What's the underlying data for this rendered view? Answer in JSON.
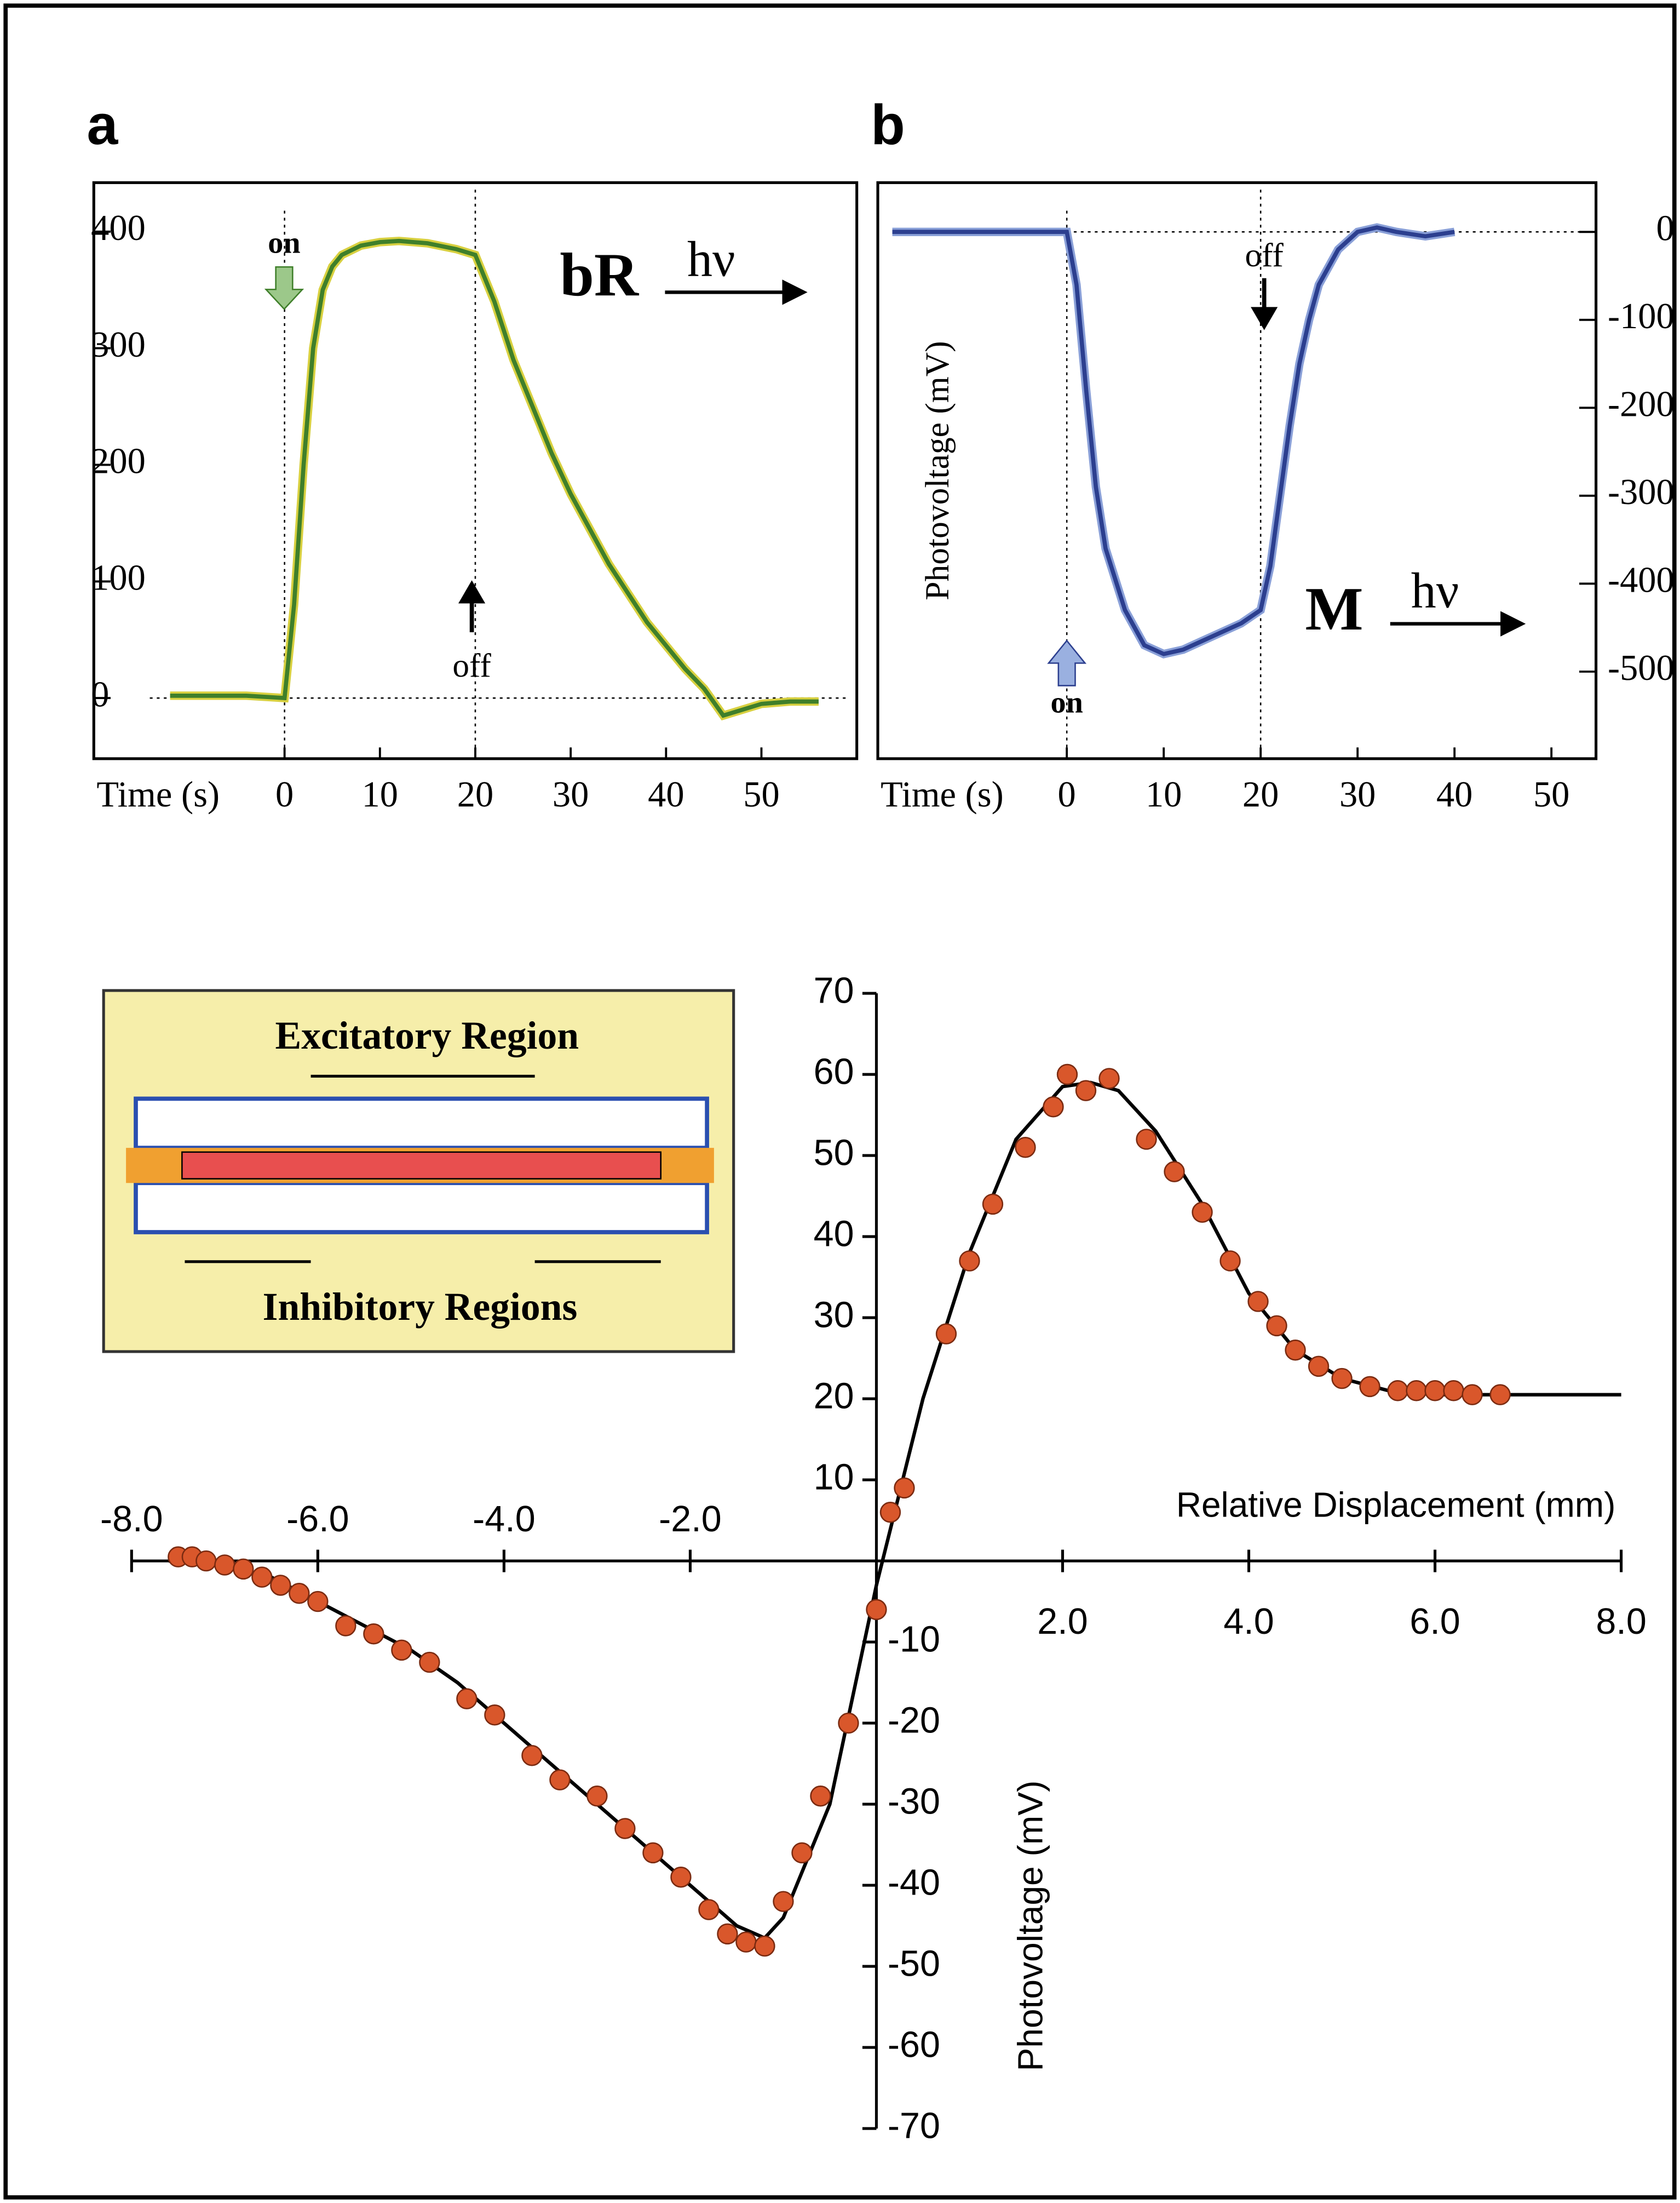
{
  "chart_data": [
    {
      "type": "line",
      "label": "a",
      "xlabel": "Time (s)",
      "xlim": [
        -20,
        60
      ],
      "xticks": [
        0,
        10,
        20,
        30,
        40,
        50
      ],
      "ylim": [
        -52,
        442
      ],
      "yticks": [
        0,
        100,
        200,
        300,
        400
      ],
      "series": [
        {
          "color": "#3f7f2a",
          "x": [
            -12,
            -8,
            -4,
            0,
            1,
            2,
            3,
            4,
            5,
            6,
            8,
            10,
            12,
            15,
            18,
            20,
            22,
            24,
            26,
            28,
            30,
            32,
            34,
            36,
            38,
            40,
            42,
            44,
            46,
            48,
            50,
            53,
            56
          ],
          "values": [
            2,
            2,
            2,
            0,
            80,
            200,
            300,
            350,
            370,
            380,
            388,
            391,
            392,
            390,
            385,
            380,
            340,
            290,
            250,
            210,
            175,
            145,
            115,
            90,
            65,
            45,
            25,
            8,
            -15,
            -10,
            -5,
            -3,
            -3
          ]
        }
      ],
      "annotations": [
        "on",
        "off",
        "bR",
        "hν"
      ]
    },
    {
      "type": "line",
      "label": "b",
      "xlabel": "Time (s)",
      "ylabel": "Photovoltage (mV)",
      "xlim": [
        -19.5,
        54.6
      ],
      "xticks": [
        0,
        10,
        20,
        30,
        40,
        50
      ],
      "ylim": [
        -599,
        56
      ],
      "yticks": [
        0,
        -100,
        -200,
        -300,
        -400,
        -500
      ],
      "series": [
        {
          "color": "#2c3f8f",
          "x": [
            -18,
            -10,
            0,
            1,
            2,
            3,
            4,
            6,
            8,
            10,
            12,
            14,
            16,
            18,
            20,
            21,
            22,
            23,
            24,
            25,
            26,
            28,
            30,
            32,
            34,
            37,
            40
          ],
          "values": [
            0,
            0,
            0,
            -60,
            -180,
            -290,
            -360,
            -430,
            -470,
            -480,
            -475,
            -465,
            -455,
            -445,
            -430,
            -380,
            -300,
            -220,
            -150,
            -100,
            -60,
            -20,
            0,
            5,
            0,
            -5,
            0
          ]
        }
      ],
      "annotations": [
        "off",
        "on",
        "M",
        "hν"
      ]
    },
    {
      "type": "scatter",
      "xlabel": "Relative Displacement (mm)",
      "ylabel": "Photovoltage (mV)",
      "xlim": [
        -8,
        8
      ],
      "xticks": [
        {
          "value": -8,
          "label": "-8.0"
        },
        {
          "value": -6,
          "label": "-6.0"
        },
        {
          "value": -4,
          "label": "-4.0"
        },
        {
          "value": -2,
          "label": "-2.0"
        },
        {
          "value": 2,
          "label": "2.0"
        },
        {
          "value": 4,
          "label": "4.0"
        },
        {
          "value": 6,
          "label": "6.0"
        },
        {
          "value": 8,
          "label": "8.0"
        }
      ],
      "ylim": [
        -70,
        70
      ],
      "yticks": [
        70,
        60,
        50,
        40,
        30,
        20,
        10,
        -10,
        -20,
        -30,
        -40,
        -50,
        -60,
        -70
      ],
      "series": [
        {
          "color": "#d9572b",
          "x": [
            -7.5,
            -7.35,
            -7.2,
            -7.0,
            -6.8,
            -6.6,
            -6.4,
            -6.2,
            -6.0,
            -5.7,
            -5.4,
            -5.1,
            -4.8,
            -4.4,
            -4.1,
            -3.7,
            -3.4,
            -3.0,
            -2.7,
            -2.4,
            -2.1,
            -1.8,
            -1.6,
            -1.4,
            -1.2,
            -1.0,
            -0.8,
            -0.6,
            -0.3,
            0,
            0.15,
            0.3,
            0.75,
            1.0,
            1.25,
            1.6,
            1.9,
            2.05,
            2.25,
            2.5,
            2.9,
            3.2,
            3.5,
            3.8,
            4.1,
            4.3,
            4.5,
            4.75,
            5.0,
            5.3,
            5.6,
            5.8,
            6.0,
            6.2,
            6.4,
            6.7
          ],
          "values": [
            0.5,
            0.5,
            0,
            -0.5,
            -1,
            -2,
            -3,
            -4,
            -5,
            -8,
            -9,
            -11,
            -12.5,
            -17,
            -19,
            -24,
            -27,
            -29,
            -33,
            -36,
            -39,
            -43,
            -46,
            -47,
            -47.5,
            -42,
            -36,
            -29,
            -20,
            -6,
            6,
            9,
            28,
            37,
            44,
            51,
            56,
            60,
            58,
            59.5,
            52,
            48,
            43,
            37,
            32,
            29,
            26,
            24,
            22.5,
            21.5,
            21,
            21,
            21,
            21,
            20.5,
            20.5
          ]
        }
      ],
      "fit": {
        "color": "#000000",
        "x": [
          -7.6,
          -7,
          -6.5,
          -6,
          -5.5,
          -5,
          -4.5,
          -4,
          -3.5,
          -3,
          -2.5,
          -2,
          -1.5,
          -1.2,
          -1,
          -0.5,
          0,
          0.5,
          1,
          1.5,
          2,
          2.3,
          2.6,
          3,
          3.5,
          4,
          4.5,
          5,
          5.5,
          6,
          7,
          8
        ],
        "values": [
          0,
          -0.5,
          -2,
          -5,
          -8,
          -11,
          -15,
          -20,
          -25,
          -30,
          -35,
          -40,
          -45,
          -46.5,
          -44,
          -30,
          -3,
          20,
          38,
          52,
          58.5,
          59,
          58,
          53,
          44,
          33,
          26,
          22.5,
          21,
          20.5,
          20.5,
          20.5
        ]
      },
      "inset": [
        "Excitatory Region",
        "Inhibitory Regions"
      ]
    }
  ]
}
